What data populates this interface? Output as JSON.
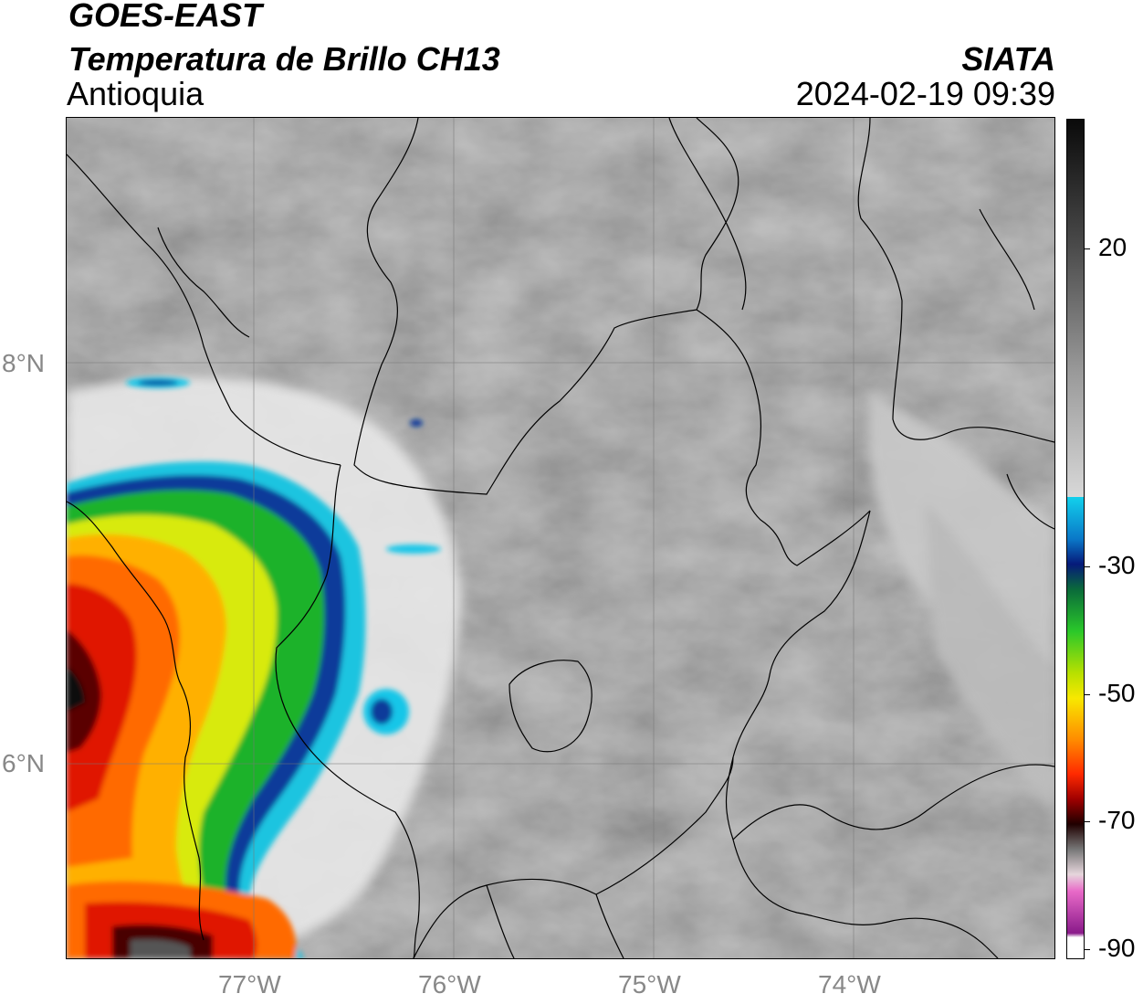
{
  "header": {
    "satellite": "GOES-EAST",
    "product": "Temperatura de Brillo CH13",
    "region": "Antioquia",
    "agency": "SIATA",
    "datetime": "2024-02-19 09:39"
  },
  "map": {
    "latitude_labels": [
      "8°N",
      "6°N"
    ],
    "longitude_labels": [
      "77°W",
      "76°W",
      "75°W",
      "74°W"
    ],
    "background": "grayscale brightness temperature",
    "colors": {
      "warm_gray": "#8a8a8a",
      "light": "#eeeeee",
      "cyan": "#12c6e8",
      "blue": "#0a3a9a",
      "green": "#16b82a",
      "yellow": "#f2e800",
      "orange": "#ff8a00",
      "red": "#e01800",
      "dark_red": "#5a0000"
    }
  },
  "colorbar": {
    "tick_labels": [
      "20",
      "-30",
      "-50",
      "-70",
      "-90"
    ],
    "unit_hint": "°C"
  }
}
